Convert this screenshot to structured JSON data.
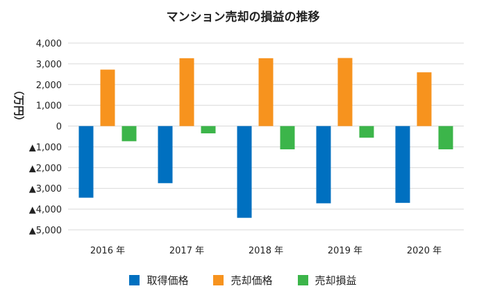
{
  "chart_data": {
    "type": "bar",
    "title": "マンション売却の損益の推移",
    "ylabel": "（万円）",
    "xlabel": "",
    "categories": [
      "2016 年",
      "2017 年",
      "2018 年",
      "2019 年",
      "2020 年"
    ],
    "ylim": [
      -5000,
      4000
    ],
    "yticks": [
      4000,
      3000,
      2000,
      1000,
      0,
      -1000,
      -2000,
      -3000,
      -4000,
      -5000
    ],
    "ytick_labels": [
      "4,000",
      "3,000",
      "2,000",
      "1,000",
      "0",
      "▲1,000",
      "▲2,000",
      "▲3,000",
      "▲4,000",
      "▲5,000"
    ],
    "grid": true,
    "legend_position": "bottom",
    "series": [
      {
        "name": "取得価格",
        "color": "#0070C0",
        "values": [
          -3450,
          -2750,
          -4420,
          -3720,
          -3700
        ]
      },
      {
        "name": "売却価格",
        "color": "#F7931E",
        "values": [
          2720,
          3270,
          3270,
          3280,
          2590
        ]
      },
      {
        "name": "売却損益",
        "color": "#3CB54A",
        "values": [
          -730,
          -350,
          -1120,
          -560,
          -1120
        ]
      }
    ]
  }
}
